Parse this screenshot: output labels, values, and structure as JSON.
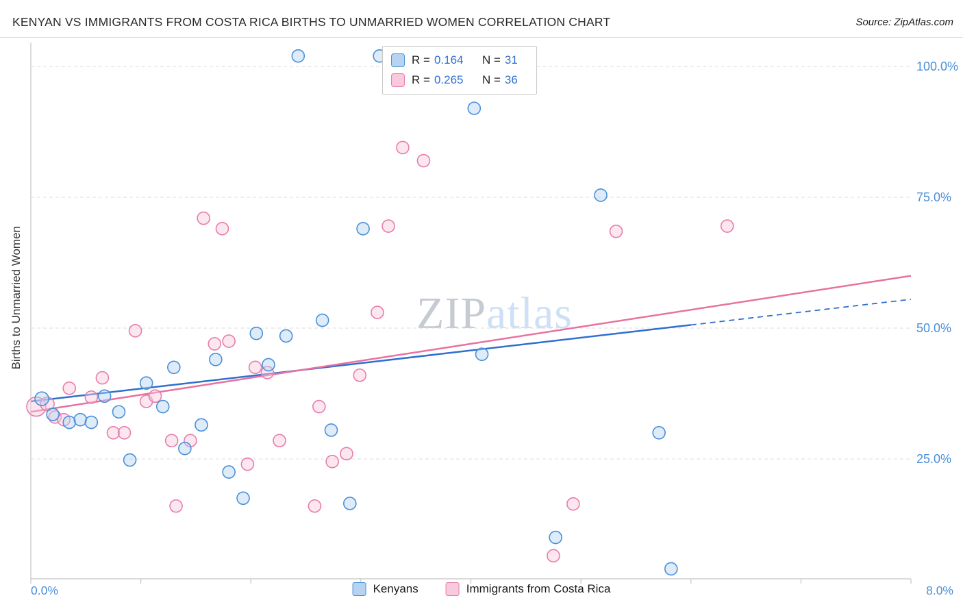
{
  "header": {
    "title": "KENYAN VS IMMIGRANTS FROM COSTA RICA BIRTHS TO UNMARRIED WOMEN CORRELATION CHART",
    "source": "Source: ZipAtlas.com"
  },
  "watermark": {
    "zip": "ZIP",
    "atlas": "atlas"
  },
  "legend_box": {
    "rows": [
      {
        "series": "Kenyans",
        "r_label": "R =",
        "r_value": "0.164",
        "n_label": "N =",
        "n_value": "31"
      },
      {
        "series": "Immigrants from Costa Rica",
        "r_label": "R =",
        "r_value": "0.265",
        "n_label": "N =",
        "n_value": "36"
      }
    ]
  },
  "chart_data": {
    "type": "scatter",
    "title": "Kenyan vs Immigrants from Costa Rica Births to Unmarried Women",
    "xlabel": "",
    "ylabel": "Births to Unmarried Women",
    "x_range": [
      0,
      8
    ],
    "y_range": [
      0,
      105
    ],
    "x_tick_labels": [
      "0.0%",
      "8.0%"
    ],
    "y_gridlines": [
      100,
      75,
      50,
      25
    ],
    "y_tick_labels": [
      "100.0%",
      "75.0%",
      "50.0%",
      "25.0%"
    ],
    "grid": true,
    "legend_position": "bottom",
    "axis_label_color": "#4a90d9",
    "grid_color": "#dcdcdc",
    "axis_color": "#c4c4c4",
    "series": [
      {
        "id": "kenyans",
        "name": "Kenyans",
        "R": 0.164,
        "N": 31,
        "color": "#4a90d9",
        "fill": "#b6d3f2",
        "points": [
          [
            0.1,
            36.5,
            10
          ],
          [
            0.2,
            33.5,
            9
          ],
          [
            0.35,
            32.0,
            9
          ],
          [
            0.45,
            32.5,
            9
          ],
          [
            0.55,
            32.0,
            9
          ],
          [
            0.67,
            37.0,
            9
          ],
          [
            0.8,
            34.0,
            9
          ],
          [
            0.9,
            24.8,
            9
          ],
          [
            1.05,
            39.5,
            9
          ],
          [
            1.2,
            35.0,
            9
          ],
          [
            1.3,
            42.5,
            9
          ],
          [
            1.4,
            27.0,
            9
          ],
          [
            1.55,
            31.5,
            9
          ],
          [
            1.68,
            44.0,
            9
          ],
          [
            1.8,
            22.5,
            9
          ],
          [
            1.93,
            17.5,
            9
          ],
          [
            2.05,
            49.0,
            9
          ],
          [
            2.16,
            43.0,
            9
          ],
          [
            2.32,
            48.5,
            9
          ],
          [
            2.43,
            102.0,
            9
          ],
          [
            2.65,
            51.5,
            9
          ],
          [
            2.73,
            30.5,
            9
          ],
          [
            2.9,
            16.5,
            9
          ],
          [
            3.02,
            69.0,
            9
          ],
          [
            3.17,
            102.0,
            9
          ],
          [
            4.03,
            92.0,
            9
          ],
          [
            4.1,
            45.0,
            9
          ],
          [
            4.77,
            10.0,
            9
          ],
          [
            5.18,
            75.4,
            9
          ],
          [
            5.71,
            30.0,
            9
          ],
          [
            5.82,
            4.0,
            9
          ]
        ]
      },
      {
        "id": "costa-rica",
        "name": "Immigrants from Costa Rica",
        "R": 0.265,
        "N": 36,
        "color": "#e87da8",
        "fill": "#f9cadd",
        "points": [
          [
            0.05,
            35.0,
            14
          ],
          [
            0.15,
            35.5,
            10
          ],
          [
            0.22,
            33.0,
            9
          ],
          [
            0.3,
            32.5,
            9
          ],
          [
            0.35,
            38.5,
            9
          ],
          [
            0.55,
            36.8,
            9
          ],
          [
            0.65,
            40.5,
            9
          ],
          [
            0.75,
            30.0,
            9
          ],
          [
            0.85,
            30.0,
            9
          ],
          [
            0.95,
            49.5,
            9
          ],
          [
            1.05,
            36.0,
            9
          ],
          [
            1.13,
            37.0,
            9
          ],
          [
            1.28,
            28.5,
            9
          ],
          [
            1.32,
            16.0,
            9
          ],
          [
            1.45,
            28.5,
            9
          ],
          [
            1.57,
            71.0,
            9
          ],
          [
            1.67,
            47.0,
            9
          ],
          [
            1.74,
            69.0,
            9
          ],
          [
            1.8,
            47.5,
            9
          ],
          [
            1.97,
            24.0,
            9
          ],
          [
            2.04,
            42.5,
            9
          ],
          [
            2.15,
            41.5,
            9
          ],
          [
            2.26,
            28.5,
            9
          ],
          [
            2.58,
            16.0,
            9
          ],
          [
            2.62,
            35.0,
            9
          ],
          [
            2.74,
            24.5,
            9
          ],
          [
            2.87,
            26.0,
            9
          ],
          [
            2.99,
            41.0,
            9
          ],
          [
            3.15,
            53.0,
            9
          ],
          [
            3.25,
            69.5,
            9
          ],
          [
            3.38,
            84.5,
            9
          ],
          [
            3.57,
            82.0,
            9
          ],
          [
            4.75,
            6.5,
            9
          ],
          [
            4.93,
            16.4,
            9
          ],
          [
            5.32,
            68.5,
            9
          ],
          [
            6.33,
            69.5,
            9
          ]
        ]
      }
    ],
    "trend_lines": [
      {
        "name": "kenyans-trend-line",
        "color": "#2e6fd0",
        "solid": [
          [
            0,
            36.0
          ],
          [
            6.0,
            50.6
          ]
        ],
        "dashed": [
          [
            6.0,
            50.6
          ],
          [
            8.0,
            55.5
          ]
        ]
      },
      {
        "name": "costa-rica-trend-line",
        "color": "#e8719f",
        "solid": [
          [
            0,
            34.0
          ],
          [
            8.0,
            60.0
          ]
        ]
      }
    ]
  }
}
